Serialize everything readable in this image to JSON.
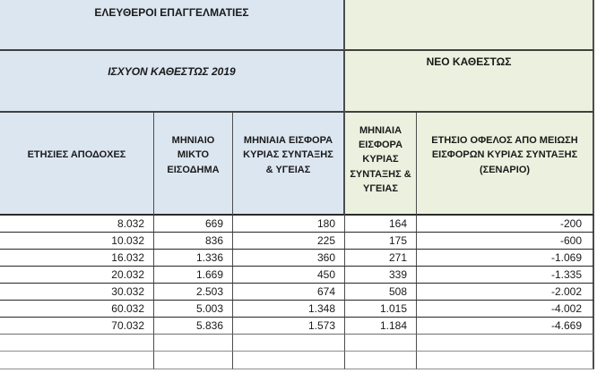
{
  "chart_data": {
    "type": "table",
    "title": "ΕΛΕΥΘΕΡΟΙ ΕΠΑΓΓΕΛΜΑΤΙΕΣ",
    "section_headers": {
      "left": "ΙΣΧΥΟΝ ΚΑΘΕΣΤΩΣ 2019",
      "right": "ΝΕΟ ΚΑΘΕΣΤΩΣ"
    },
    "columns": [
      "ΕΤΗΣΙΕΣ ΑΠΟΔΟΧΕΣ",
      "ΜΗΝΙΑΙΟ ΜΙΚΤΟ ΕΙΣΟΔΗΜΑ",
      "ΜΗΝΙΑΙΑ ΕΙΣΦΟΡΑ ΚΥΡΙΑΣ ΣΥΝΤΑΞΗΣ & ΥΓΕΙΑΣ",
      "ΜΗΝΙΑΙΑ ΕΙΣΦΟΡΑ ΚΥΡΙΑΣ ΣΥΝΤΑΞΗΣ & ΥΓΕΙΑΣ",
      "ΕΤΗΣΙΟ ΟΦΕΛΟΣ ΑΠΟ ΜΕΙΩΣΗ ΕΙΣΦΟΡΩΝ ΚΥΡΙΑΣ ΣΥΝΤΑΞΗΣ (ΣΕΝΑΡΙΟ)"
    ],
    "rows": [
      [
        "8.032",
        "669",
        "180",
        "164",
        "-200"
      ],
      [
        "10.032",
        "836",
        "225",
        "175",
        "-600"
      ],
      [
        "16.032",
        "1.336",
        "360",
        "271",
        "-1.069"
      ],
      [
        "20.032",
        "1.669",
        "450",
        "339",
        "-1.335"
      ],
      [
        "30.032",
        "2.503",
        "674",
        "508",
        "-2.002"
      ],
      [
        "60.032",
        "5.003",
        "1.348",
        "1.015",
        "-4.002"
      ],
      [
        "70.032",
        "5.836",
        "1.573",
        "1.184",
        "-4.669"
      ]
    ],
    "empty_trailing_rows": 2,
    "layout_hints": {
      "current_regime_columns": [
        0,
        1,
        2
      ],
      "new_regime_columns": [
        3,
        4
      ]
    },
    "colors": {
      "current_regime_bg": "#dce6f1",
      "new_regime_bg": "#ebf1de",
      "text": "#1a1a1a"
    }
  }
}
